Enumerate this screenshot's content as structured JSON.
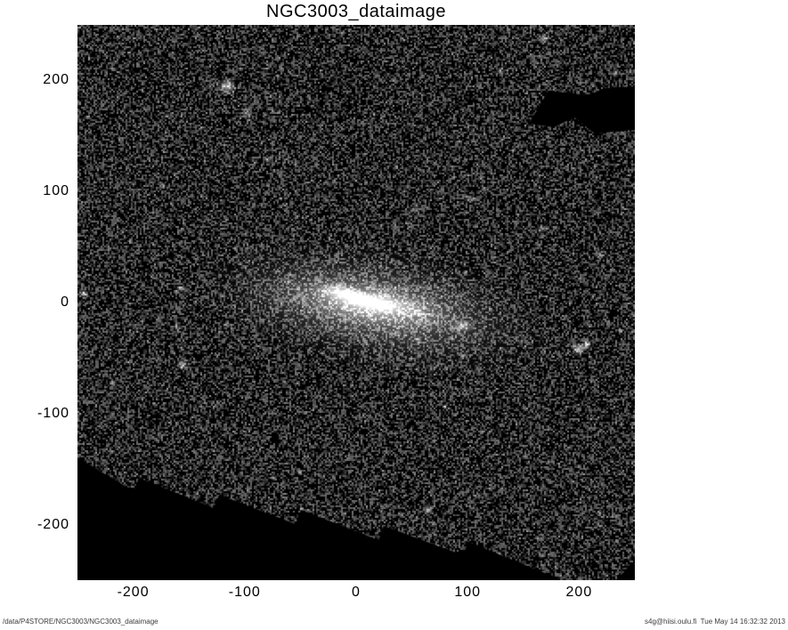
{
  "chart_data": {
    "type": "heatmap",
    "title": "NGC3003_dataimage",
    "xlabel": "",
    "ylabel": "",
    "xlim": [
      -250,
      250
    ],
    "ylim": [
      -250,
      250
    ],
    "x_ticks": [
      "-200",
      "-100",
      "0",
      "100",
      "200"
    ],
    "y_ticks": [
      "200",
      "100",
      "0",
      "-100",
      "-200"
    ],
    "grid": false,
    "legend": false,
    "colormap": "grayscale",
    "content": {
      "object": "NGC3003",
      "description": "Near edge-on spiral galaxy NGC 3003 shown as a grayscale mosaic data image: an elongated diffuse glow tilted slightly down to the right, centered near data coords (15,-5), extending roughly from (-135,30) to (160,-40), embedded in a dense speckled noise background with many faint point sources.",
      "galaxy_center_data_coords": [
        15,
        -5
      ],
      "galaxy_semi_major": 155,
      "galaxy_semi_minor": 45,
      "galaxy_tilt_deg": 9,
      "mosaic_gaps": [
        "stair-stepped black uncovered region across the lower-left, from the left edge at y=-140 descending to the bottom edge near x=180",
        "black wedge notch at the upper-right edge, approx x=155..250, y=150..195",
        "small black triangle at the lower-right corner"
      ]
    }
  },
  "footer": {
    "left": "/data/P4STORE/NGC3003/NGC3003_dataimage",
    "right": "s4g@hiisi.oulu.fi  Tue May 14 16:32:32 2013"
  }
}
